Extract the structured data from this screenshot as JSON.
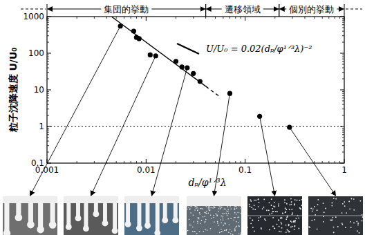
{
  "chart_data": {
    "type": "scatter",
    "x_label": "dₚ/φ¹ᐟ³λ",
    "y_label": "粒子沈降速度 U/U₀",
    "log": true,
    "xlim": [
      0.001,
      1
    ],
    "ylim": [
      0.1,
      1000
    ],
    "xticks": [
      0.001,
      0.01,
      0.1,
      1
    ],
    "yticks": [
      0.1,
      1,
      10,
      100,
      1000
    ],
    "grid": false,
    "series": [
      {
        "type": "scatter",
        "marker": "circle",
        "color": "#000000",
        "x": [
          0.0055,
          0.0075,
          0.008,
          0.0085,
          0.011,
          0.0125,
          0.02,
          0.023,
          0.026,
          0.03,
          0.035,
          0.07,
          0.14,
          0.28
        ],
        "values": [
          550,
          400,
          270,
          250,
          90,
          85,
          60,
          42,
          40,
          28,
          17,
          8,
          1.9,
          0.95
        ]
      },
      {
        "type": "line",
        "line_style": "solid",
        "color": "#000000",
        "x": [
          0.0045,
          0.04
        ],
        "values": [
          988,
          12.5
        ]
      },
      {
        "type": "line",
        "line_style": "dashed",
        "color": "#000000",
        "x": [
          0.04,
          0.055
        ],
        "values": [
          12.5,
          6.6
        ]
      },
      {
        "type": "line",
        "line_style": "dotted",
        "color": "#000000",
        "x": [
          0.001,
          1
        ],
        "values": [
          1,
          1
        ]
      }
    ],
    "annotations": [
      {
        "text": "U/U₀ = 0.02(dₚ/φ¹ᐟ³λ)⁻²"
      }
    ],
    "regions": [
      {
        "label": "集団的挙動",
        "from": 0.001,
        "to": 0.04
      },
      {
        "label": "遷移領域",
        "from": 0.04,
        "to": 0.22
      },
      {
        "label": "個別的挙動",
        "from": 0.22,
        "to": 1
      }
    ]
  }
}
